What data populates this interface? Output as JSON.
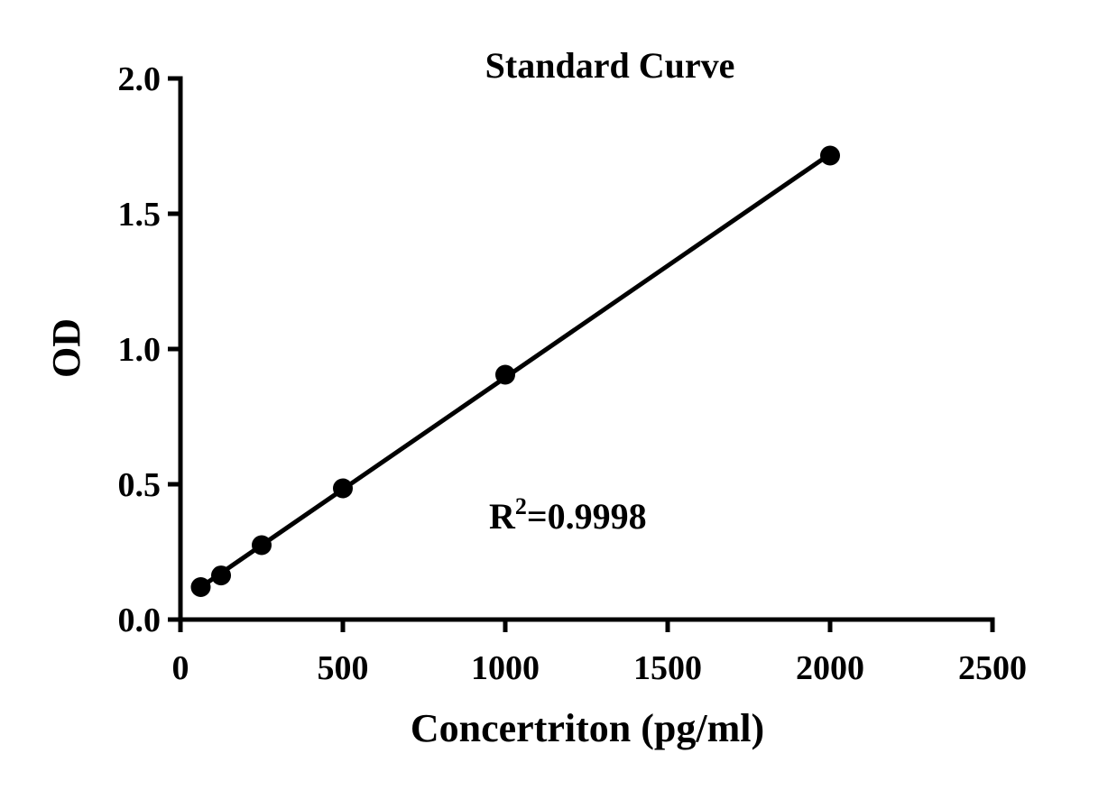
{
  "chart_data": {
    "type": "scatter",
    "title": "Standard Curve",
    "xlabel": "Concertriton (pg/ml)",
    "ylabel": "OD",
    "xlim": [
      0,
      2500
    ],
    "ylim": [
      0,
      2.0
    ],
    "xticks": [
      0,
      500,
      1000,
      1500,
      2000,
      2500
    ],
    "xtick_labels": [
      "0",
      "500",
      "1000",
      "1500",
      "2000",
      "2500"
    ],
    "yticks": [
      0,
      0.5,
      1.0,
      1.5,
      2.0
    ],
    "ytick_labels": [
      "0.0",
      "0.5",
      "1.0",
      "1.5",
      "2.0"
    ],
    "grid": false,
    "series": [
      {
        "x": [
          62.5,
          125,
          250,
          500,
          1000,
          2000
        ],
        "y": [
          0.12,
          0.163,
          0.275,
          0.485,
          0.905,
          1.715
        ],
        "fit": "linear"
      }
    ],
    "annotation": {
      "base": "R",
      "sup": "2",
      "rest": "=0.9998",
      "x": 1200,
      "y": 0.37
    },
    "color": "#000000"
  }
}
